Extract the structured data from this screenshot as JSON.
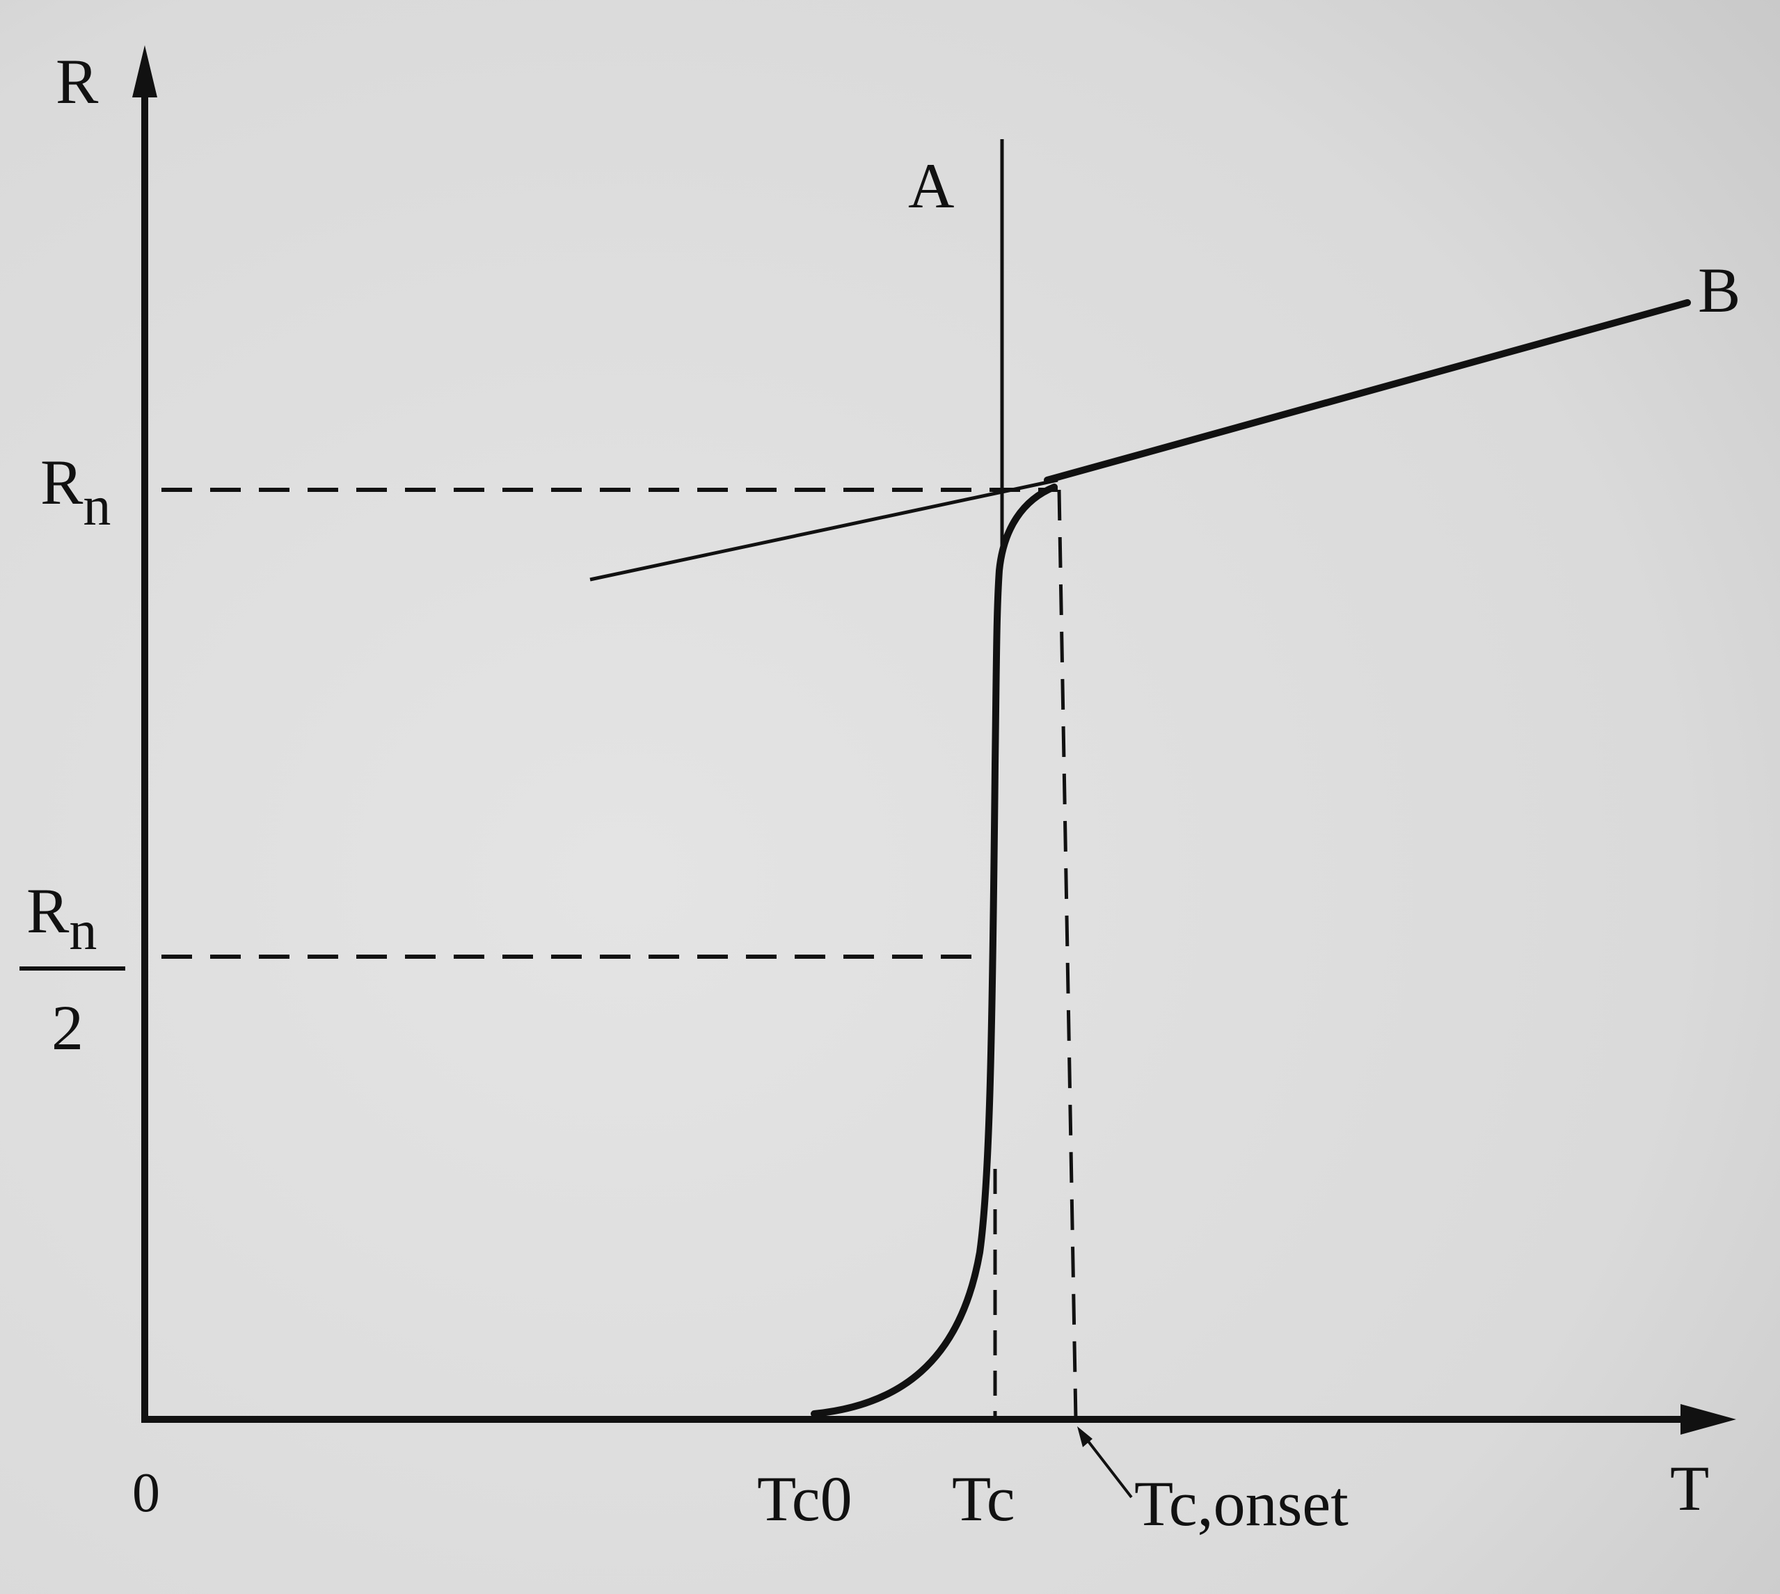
{
  "figure": {
    "axes": {
      "y_label": "R",
      "x_label": "T",
      "origin_label": "0"
    },
    "y_markers": {
      "rn_label_main": "R",
      "rn_label_sub": "n",
      "half_num_main": "R",
      "half_num_sub": "n",
      "half_den": "2"
    },
    "x_markers": {
      "tc0": "Tc0",
      "tc": "Tc",
      "tc_onset": "Tc,onset"
    },
    "lines": {
      "line_a": "A",
      "line_b": "B"
    },
    "colors": {
      "background": "#e6e6e6",
      "ink": "#111111"
    }
  }
}
